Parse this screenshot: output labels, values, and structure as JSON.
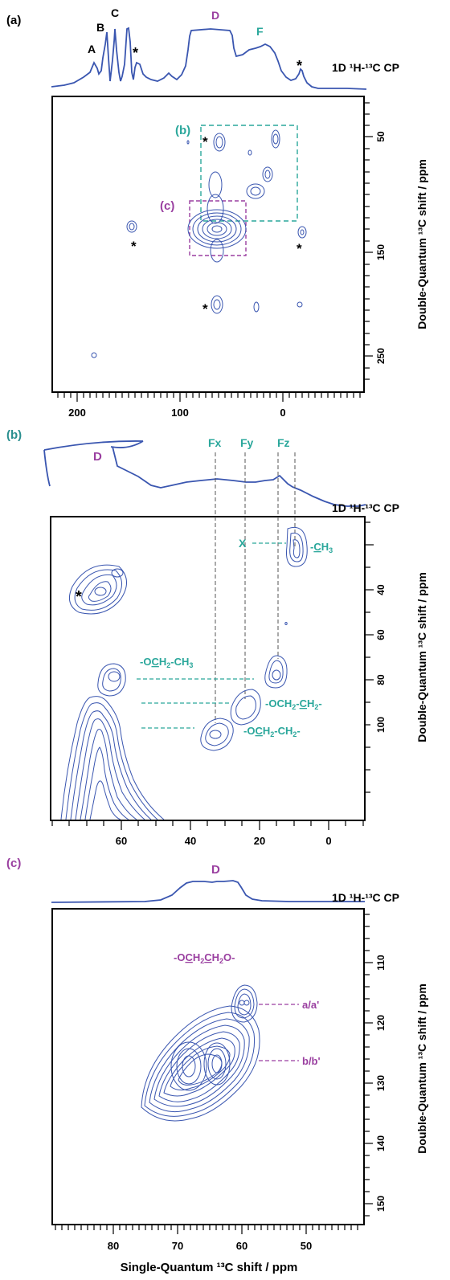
{
  "colors": {
    "spectrum": "#3a56b0",
    "panel_label": "#2a8f8f",
    "d_label": "#9a3fa0",
    "teal": "#2aa79b",
    "purple": "#9a3fa0",
    "axis": "#000000",
    "dash_gray": "#555555"
  },
  "panel_a": {
    "label": "(a)",
    "cp_label": "1D ¹H-¹³C CP",
    "peak_letters": [
      "A",
      "B",
      "C",
      "D",
      "F"
    ],
    "asterisk": "*",
    "box_b_label": "(b)",
    "box_c_label": "(c)",
    "ylabel": "Double-Quantum ¹³C shift / ppm"
  },
  "panel_b": {
    "label": "(b)",
    "d_label": "D",
    "cp_label": "1D ¹H-¹³C CP",
    "f_labels": [
      "Fx",
      "Fy",
      "Fz"
    ],
    "x_label": "X",
    "asterisk": "*",
    "assignments": [
      "-CH3",
      "-OCH2-CH3",
      "-OCH2-CH2-",
      "-OCH2-CH2-"
    ],
    "ylabel": "Double-Quantum ¹³C shift / ppm"
  },
  "panel_c": {
    "label": "(c)",
    "d_label": "D",
    "cp_label": "1D ¹H-¹³C CP",
    "group_label": "-OCH2CH2O-",
    "assignments": [
      "a/a'",
      "b/b'"
    ],
    "ylabel": "Double-Quantum ¹³C shift / ppm",
    "xlabel": "Single-Quantum ¹³C shift / ppm"
  },
  "chart_data": [
    {
      "type": "heatmap",
      "panel": "(a)",
      "xlabel": "",
      "ylabel": "Double-Quantum ¹³C shift / ppm",
      "xlim": [
        225,
        -25
      ],
      "ylim": [
        20,
        290
      ],
      "x_ticks": [
        200,
        100,
        0
      ],
      "y_ticks": [
        50,
        150,
        250
      ],
      "contour_peaks": [
        {
          "sq": 65,
          "dq": 130,
          "note": "D"
        },
        {
          "sq": 70,
          "dq": 45,
          "note": "*"
        },
        {
          "sq": 20,
          "dq": 45
        },
        {
          "sq": 15,
          "dq": 80
        },
        {
          "sq": 35,
          "dq": 95
        },
        {
          "sq": 60,
          "dq": 80
        },
        {
          "sq": 135,
          "dq": 135,
          "note": "*"
        },
        {
          "sq": -10,
          "dq": 140,
          "note": "*"
        },
        {
          "sq": 65,
          "dq": 210,
          "note": "*"
        },
        {
          "sq": 35,
          "dq": 210
        },
        {
          "sq": -10,
          "dq": 205
        },
        {
          "sq": 180,
          "dq": 270
        }
      ],
      "cp_peaks": [
        "A",
        "B",
        "C",
        "D",
        "F"
      ]
    },
    {
      "type": "heatmap",
      "panel": "(b)",
      "xlabel": "",
      "ylabel": "Double-Quantum ¹³C shift / ppm",
      "xlim": [
        80,
        -10
      ],
      "ylim": [
        28,
        120
      ],
      "x_ticks": [
        60,
        40,
        20,
        0
      ],
      "y_ticks": [
        40,
        60,
        80,
        100
      ],
      "contour_peaks": [
        {
          "sq": 12,
          "dq": 38,
          "label": "-CH3"
        },
        {
          "sq": 65,
          "dq": 47,
          "note": "*"
        },
        {
          "sq": 15,
          "dq": 77,
          "label": "-OCH2-CH3"
        },
        {
          "sq": 62,
          "dq": 78
        },
        {
          "sq": 27,
          "dq": 90,
          "label": "-OCH2-CH2-"
        },
        {
          "sq": 32,
          "dq": 100,
          "label": "-OCH2-CH2-"
        }
      ],
      "guide_lines_sq": [
        34,
        25,
        15,
        10
      ]
    },
    {
      "type": "heatmap",
      "panel": "(c)",
      "xlabel": "Single-Quantum ¹³C shift / ppm",
      "ylabel": "Double-Quantum ¹³C shift / ppm",
      "xlim": [
        90,
        40
      ],
      "ylim": [
        104,
        156
      ],
      "x_ticks": [
        80,
        70,
        60,
        50
      ],
      "y_ticks": [
        110,
        120,
        130,
        140,
        150
      ],
      "contour_peaks": [
        {
          "sq": 60,
          "dq": 120,
          "label": "a/a'"
        },
        {
          "sq": 62,
          "dq": 131,
          "label": "b/b'"
        },
        {
          "sq": 68,
          "dq": 132
        }
      ]
    }
  ]
}
